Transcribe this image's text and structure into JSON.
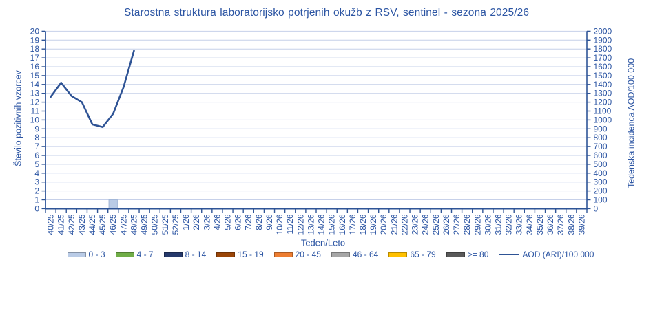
{
  "colors": {
    "text": "#2c55a3",
    "axis": "#2f5597",
    "grid": "#c6d0e9",
    "bar_border": "#a3b8d9"
  },
  "chart_data": {
    "type": "bar",
    "title": "Starostna struktura laboratorijsko potrjenih okužb z RSV, sentinel - sezona 2025/26",
    "xlabel": "Teden/Leto",
    "grid": "horizontal",
    "legend_position": "bottom",
    "categories": [
      "40/25",
      "41/25",
      "42/25",
      "43/25",
      "44/25",
      "45/25",
      "46/25",
      "47/25",
      "48/25",
      "49/25",
      "50/25",
      "51/25",
      "52/25",
      "1/26",
      "2/26",
      "3/26",
      "4/26",
      "5/26",
      "6/26",
      "7/26",
      "8/26",
      "9/26",
      "10/26",
      "11/26",
      "12/26",
      "13/26",
      "14/26",
      "15/26",
      "16/26",
      "17/26",
      "18/26",
      "19/26",
      "20/26",
      "21/26",
      "22/26",
      "23/26",
      "24/26",
      "25/26",
      "26/26",
      "27/26",
      "28/26",
      "29/26",
      "30/26",
      "31/26",
      "32/26",
      "33/26",
      "34/26",
      "35/26",
      "36/26",
      "37/26",
      "38/26",
      "39/26"
    ],
    "left_axis": {
      "label": "Število pozitivnih vzorcev",
      "min": 0,
      "max": 20,
      "step": 1
    },
    "right_axis": {
      "label": "Tedenska incidenca AOD/100 000",
      "min": 0,
      "max": 2000,
      "step": 100
    },
    "series": [
      {
        "name": "0 - 3",
        "type": "bar",
        "color": "#b9cbe6",
        "points": [
          {
            "category": "46/25",
            "value": 1
          }
        ]
      },
      {
        "name": "4 - 7",
        "type": "bar",
        "color": "#70ad47",
        "points": []
      },
      {
        "name": "8 - 14",
        "type": "bar",
        "color": "#25396b",
        "points": []
      },
      {
        "name": "15 - 19",
        "type": "bar",
        "color": "#9a4507",
        "points": []
      },
      {
        "name": "20 - 45",
        "type": "bar",
        "color": "#ed7d31",
        "points": []
      },
      {
        "name": "46 - 64",
        "type": "bar",
        "color": "#a6a6a6",
        "points": []
      },
      {
        "name": "65 - 79",
        "type": "bar",
        "color": "#ffc000",
        "points": []
      },
      {
        "name": ">= 80",
        "type": "bar",
        "color": "#595959",
        "points": []
      },
      {
        "name": "AOD (ARI)/100 000",
        "type": "line",
        "color": "#2e5395",
        "axis": "right",
        "x": [
          "40/25",
          "41/25",
          "42/25",
          "43/25",
          "44/25",
          "45/25",
          "46/25",
          "47/25",
          "48/25"
        ],
        "values": [
          1260,
          1420,
          1270,
          1200,
          950,
          920,
          1070,
          1370,
          1780
        ]
      }
    ]
  }
}
